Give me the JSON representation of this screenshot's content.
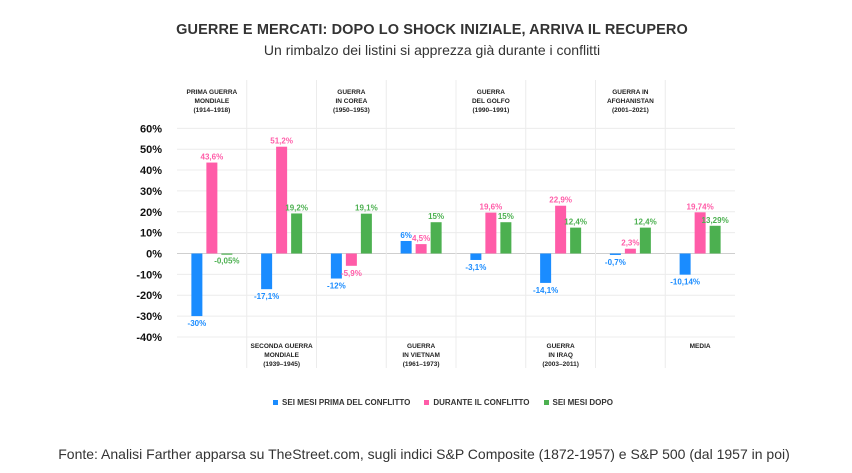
{
  "title": "GUERRE E MERCATI: DOPO LO SHOCK INIZIALE, ARRIVA IL RECUPERO",
  "subtitle": "Un rimbalzo dei listini si apprezza già durante i conflitti",
  "source": "Fonte: Analisi Farther apparsa su TheStreet.com, sugli indici S&P Composite (1872-1957) e S&P 500 (dal 1957 in poi)",
  "chart_data": {
    "type": "bar",
    "ylim": [
      -40,
      60
    ],
    "yticks": [
      "60%",
      "50%",
      "40%",
      "30%",
      "20%",
      "10%",
      "0%",
      "-10%",
      "-20%",
      "-30%",
      "-40%"
    ],
    "ytick_values": [
      60,
      50,
      40,
      30,
      20,
      10,
      0,
      -10,
      -20,
      -30,
      -40
    ],
    "grid": true,
    "legend_position": "bottom",
    "categories": [
      {
        "lines": [
          "PRIMA GUERRA",
          "MONDIALE",
          "(1914–1918)"
        ],
        "label_position": "top"
      },
      {
        "lines": [
          "SECONDA GUERRA",
          "MONDIALE",
          "(1939–1945)"
        ],
        "label_position": "bottom"
      },
      {
        "lines": [
          "GUERRA",
          "IN COREA",
          "(1950–1953)"
        ],
        "label_position": "top"
      },
      {
        "lines": [
          "GUERRA",
          "IN VIETNAM",
          "(1961–1973)"
        ],
        "label_position": "bottom"
      },
      {
        "lines": [
          "GUERRA",
          "DEL GOLFO",
          "(1990–1991)"
        ],
        "label_position": "top"
      },
      {
        "lines": [
          "GUERRA",
          "IN IRAQ",
          "(2003–2011)"
        ],
        "label_position": "bottom"
      },
      {
        "lines": [
          "GUERRA IN",
          "AFGHANISTAN",
          "(2001–2021)"
        ],
        "label_position": "top"
      },
      {
        "lines": [
          "MEDIA"
        ],
        "label_position": "bottom"
      }
    ],
    "series": [
      {
        "name": "SEI MESI PRIMA DEL CONFLITTO",
        "color": "#1a8cff",
        "values": [
          -30,
          -17.1,
          -12,
          6,
          -3.1,
          -14.1,
          -0.7,
          -10.14
        ],
        "labels": [
          "-30%",
          "-17,1%",
          "-12%",
          "6%",
          "-3,1%",
          "-14,1%",
          "-0,7%",
          "-10,14%"
        ]
      },
      {
        "name": "DURANTE IL CONFLITTO",
        "color": "#ff5ca8",
        "values": [
          43.6,
          51.2,
          -5.9,
          4.5,
          19.6,
          22.9,
          2.3,
          19.74
        ],
        "labels": [
          "43,6%",
          "51,2%",
          "-5,9%",
          "4,5%",
          "19,6%",
          "22,9%",
          "2,3%",
          "19,74%"
        ]
      },
      {
        "name": "SEI MESI DOPO",
        "color": "#4cb050",
        "values": [
          -0.05,
          19.2,
          19.1,
          15,
          15,
          12.4,
          12.4,
          13.29
        ],
        "labels": [
          "-0,05%",
          "19,2%",
          "19,1%",
          "15%",
          "15%",
          "12,4%",
          "12,4%",
          "13,29%"
        ]
      }
    ]
  }
}
